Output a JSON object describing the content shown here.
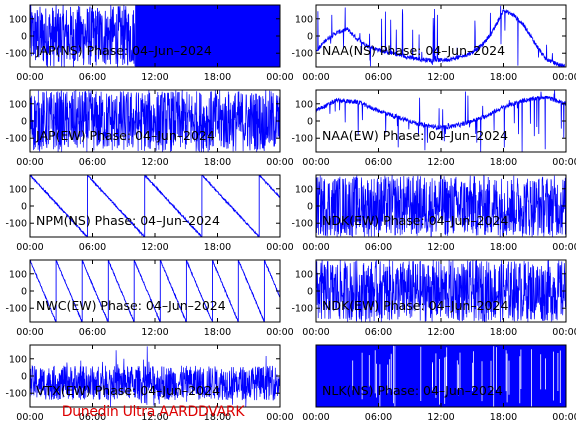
{
  "footer": "Dunedin Ultra AARDDVARK",
  "colors": {
    "trace": "#0000ff",
    "axis": "#000000",
    "footer": "#dd0000"
  },
  "chart_data": [
    {
      "type": "line",
      "title": "JAP(NS) Phase: 04–Jun–2024",
      "xlabel": "",
      "ylabel": "",
      "xlim": [
        "00:00",
        "24:00"
      ],
      "ylim": [
        -180,
        180
      ],
      "x_ticks": [
        "00:00",
        "06:00",
        "12:00",
        "18:00",
        "00:00"
      ],
      "y_ticks": [
        100,
        0,
        -100
      ],
      "style": "noise_to_solid",
      "switch_hour": 10.1
    },
    {
      "type": "line",
      "title": "NAA(NS) Phase: 04–Jun–2024",
      "xlabel": "",
      "ylabel": "",
      "xlim": [
        "00:00",
        "24:00"
      ],
      "ylim": [
        -180,
        180
      ],
      "x_ticks": [
        "00:00",
        "06:00",
        "12:00",
        "18:00",
        "00:00"
      ],
      "y_ticks": [
        100,
        0,
        -100
      ],
      "style": "arc",
      "series": [
        {
          "x": [
            0,
            1,
            2,
            3,
            4,
            5,
            6,
            7,
            8,
            9,
            10,
            11,
            12,
            13,
            14,
            15,
            16,
            17,
            18,
            19,
            20,
            21,
            22,
            23,
            24
          ],
          "y": [
            -90,
            -20,
            20,
            40,
            -20,
            -60,
            -80,
            -95,
            -110,
            -125,
            -135,
            -140,
            -140,
            -135,
            -120,
            -95,
            -50,
            30,
            150,
            120,
            60,
            -40,
            -130,
            -160,
            -180
          ]
        }
      ]
    },
    {
      "type": "line",
      "title": "JAP(EW) Phase: 04–Jun–2024",
      "xlabel": "",
      "ylabel": "",
      "xlim": [
        "00:00",
        "24:00"
      ],
      "ylim": [
        -180,
        180
      ],
      "x_ticks": [
        "00:00",
        "06:00",
        "12:00",
        "18:00",
        "00:00"
      ],
      "y_ticks": [
        100,
        0,
        -100
      ],
      "style": "noise"
    },
    {
      "type": "line",
      "title": "NAA(EW) Phase: 04–Jun–2024",
      "xlabel": "",
      "ylabel": "",
      "xlim": [
        "00:00",
        "24:00"
      ],
      "ylim": [
        -180,
        180
      ],
      "x_ticks": [
        "00:00",
        "06:00",
        "12:00",
        "18:00",
        "00:00"
      ],
      "y_ticks": [
        100,
        0,
        -100
      ],
      "style": "arc",
      "series": [
        {
          "x": [
            0,
            2,
            4,
            6,
            8,
            10,
            12,
            14,
            16,
            18,
            20,
            22,
            24
          ],
          "y": [
            60,
            120,
            110,
            60,
            20,
            -20,
            -40,
            -20,
            20,
            80,
            120,
            140,
            100
          ]
        }
      ]
    },
    {
      "type": "line",
      "title": "NPM(NS) Phase: 04–Jun–2024",
      "xlabel": "",
      "ylabel": "",
      "xlim": [
        "00:00",
        "24:00"
      ],
      "ylim": [
        -180,
        180
      ],
      "x_ticks": [
        "00:00",
        "06:00",
        "12:00",
        "18:00",
        "00:00"
      ],
      "y_ticks": [
        100,
        0,
        -100
      ],
      "style": "ramp",
      "ramp_period_hours": 5.5
    },
    {
      "type": "line",
      "title": "NDK(EW) Phase: 04–Jun–2024",
      "xlabel": "",
      "ylabel": "",
      "xlim": [
        "00:00",
        "24:00"
      ],
      "ylim": [
        -180,
        180
      ],
      "x_ticks": [
        "00:00",
        "06:00",
        "12:00",
        "18:00",
        "00:00"
      ],
      "y_ticks": [
        100,
        0,
        -100
      ],
      "style": "noise"
    },
    {
      "type": "line",
      "title": "NWC(EW) Phase: 04–Jun–2024",
      "xlabel": "",
      "ylabel": "",
      "xlim": [
        "00:00",
        "24:00"
      ],
      "ylim": [
        -180,
        180
      ],
      "x_ticks": [
        "00:00",
        "06:00",
        "12:00",
        "18:00",
        "00:00"
      ],
      "y_ticks": [
        100,
        0,
        -100
      ],
      "style": "ramp",
      "ramp_period_hours": 2.5
    },
    {
      "type": "line",
      "title": "NDK(EW) Phase: 04–Jun–2024",
      "xlabel": "",
      "ylabel": "",
      "xlim": [
        "00:00",
        "24:00"
      ],
      "ylim": [
        -180,
        180
      ],
      "x_ticks": [
        "00:00",
        "06:00",
        "12:00",
        "18:00",
        "00:00"
      ],
      "y_ticks": [
        100,
        0,
        -100
      ],
      "style": "noise"
    },
    {
      "type": "line",
      "title": "VTX(EW) Phase: 04–Jun–2024",
      "xlabel": "",
      "ylabel": "",
      "xlim": [
        "00:00",
        "24:00"
      ],
      "ylim": [
        -180,
        180
      ],
      "x_ticks": [
        "00:00",
        "06:00",
        "12:00",
        "18:00",
        "00:00"
      ],
      "y_ticks": [
        100,
        0,
        -100
      ],
      "style": "noise_band"
    },
    {
      "type": "line",
      "title": "NLK(NS) Phase: 04–Jun–2024",
      "xlabel": "",
      "ylabel": "",
      "xlim": [
        "00:00",
        "24:00"
      ],
      "ylim": [
        -180,
        180
      ],
      "x_ticks": [
        "00:00",
        "06:00",
        "12:00",
        "18:00",
        "00:00"
      ],
      "y_ticks": [],
      "style": "solid"
    }
  ]
}
